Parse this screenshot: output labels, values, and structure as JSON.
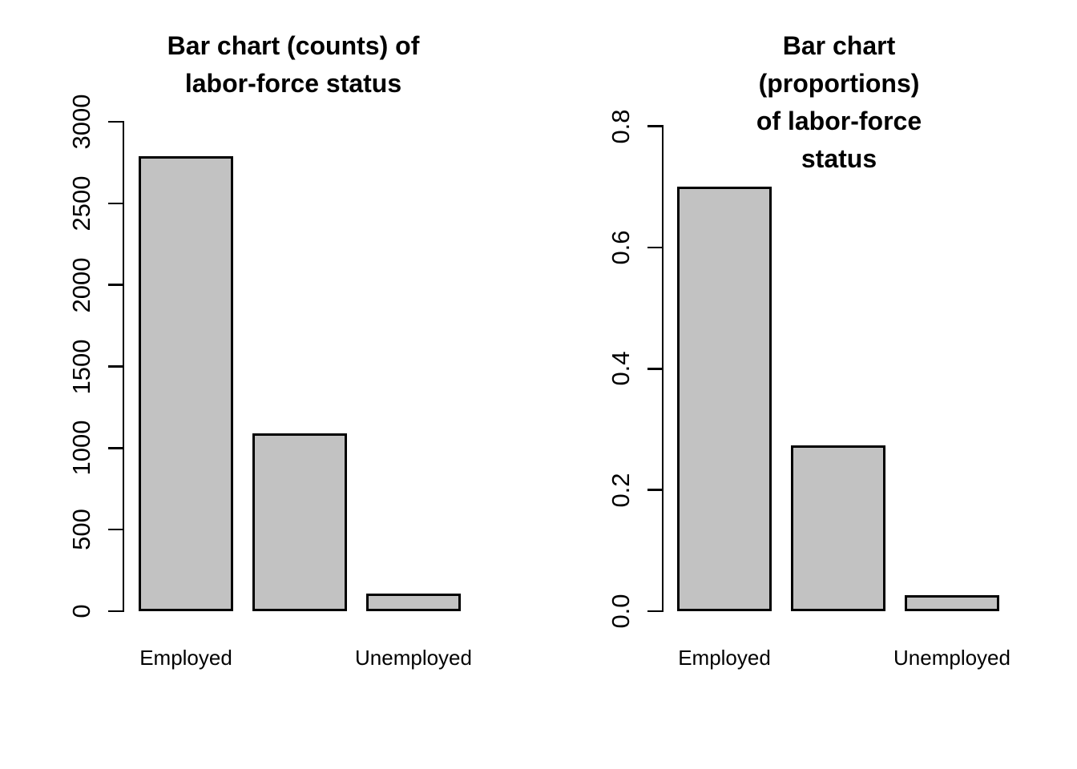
{
  "figure_title": "",
  "colors": {
    "background": "#FFFFFF",
    "bar_fill": "#C2C2C2",
    "bar_border": "#000000",
    "axis": "#000000",
    "text": "#000000"
  },
  "chart_data": [
    {
      "type": "bar",
      "title": "Bar chart (counts) of\nlabor-force status",
      "categories": [
        "Employed",
        "",
        "Unemployed"
      ],
      "values": [
        2790,
        1090,
        110
      ],
      "xlabel": "",
      "ylabel": "",
      "ylim": [
        0,
        3000
      ],
      "ytick_labels": [
        "0",
        "500",
        "1000",
        "1500",
        "2000",
        "2500",
        "3000"
      ],
      "grid": false,
      "legend": "none",
      "bar_fill": "#C2C2C2",
      "bar_border": "#000000"
    },
    {
      "type": "bar",
      "title": "Bar chart (proportions)\nof labor-force status",
      "categories": [
        "Employed",
        "",
        "Unemployed"
      ],
      "values": [
        0.7,
        0.273,
        0.027
      ],
      "xlabel": "",
      "ylabel": "",
      "ylim": [
        0,
        0.8
      ],
      "ytick_labels": [
        "0.0",
        "0.2",
        "0.4",
        "0.6",
        "0.8"
      ],
      "grid": false,
      "legend": "none",
      "bar_fill": "#C2C2C2",
      "bar_border": "#000000"
    }
  ]
}
